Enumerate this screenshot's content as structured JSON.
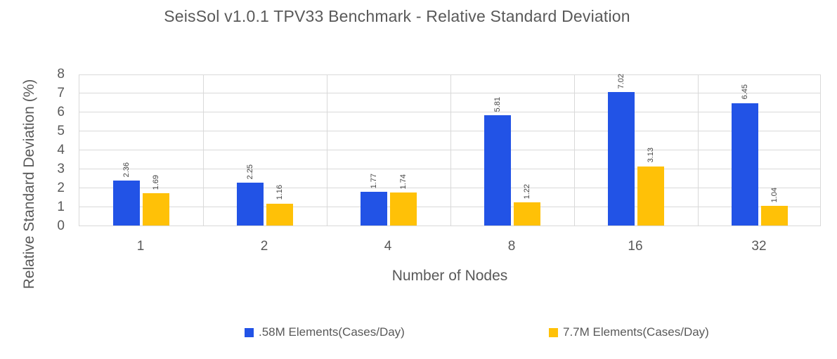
{
  "chart_data": {
    "type": "bar",
    "title": "SeisSol v1.0.1 TPV33 Benchmark - Relative Standard Deviation",
    "categories": [
      "1",
      "2",
      "4",
      "8",
      "16",
      "32"
    ],
    "series": [
      {
        "name": ".58M Elements(Cases/Day)",
        "color": "#2253e6",
        "values": [
          2.36,
          2.25,
          1.77,
          5.81,
          7.02,
          6.45
        ]
      },
      {
        "name": "7.7M Elements(Cases/Day)",
        "color": "#ffc107",
        "values": [
          1.69,
          1.16,
          1.74,
          1.22,
          3.13,
          1.04
        ]
      }
    ],
    "xlabel": "Number of Nodes",
    "ylabel": "Relative Standard Deviation (%)",
    "ylim": [
      0,
      8
    ],
    "yticks": [
      0,
      1,
      2,
      3,
      4,
      5,
      6,
      7,
      8
    ],
    "grid": true,
    "data_labels_rotated": true,
    "legend_position": "bottom",
    "colors": {
      "chrome_text": "#595959",
      "data_label_text": "#444444",
      "gridline": "#d9d9d9",
      "background": "#ffffff"
    }
  }
}
